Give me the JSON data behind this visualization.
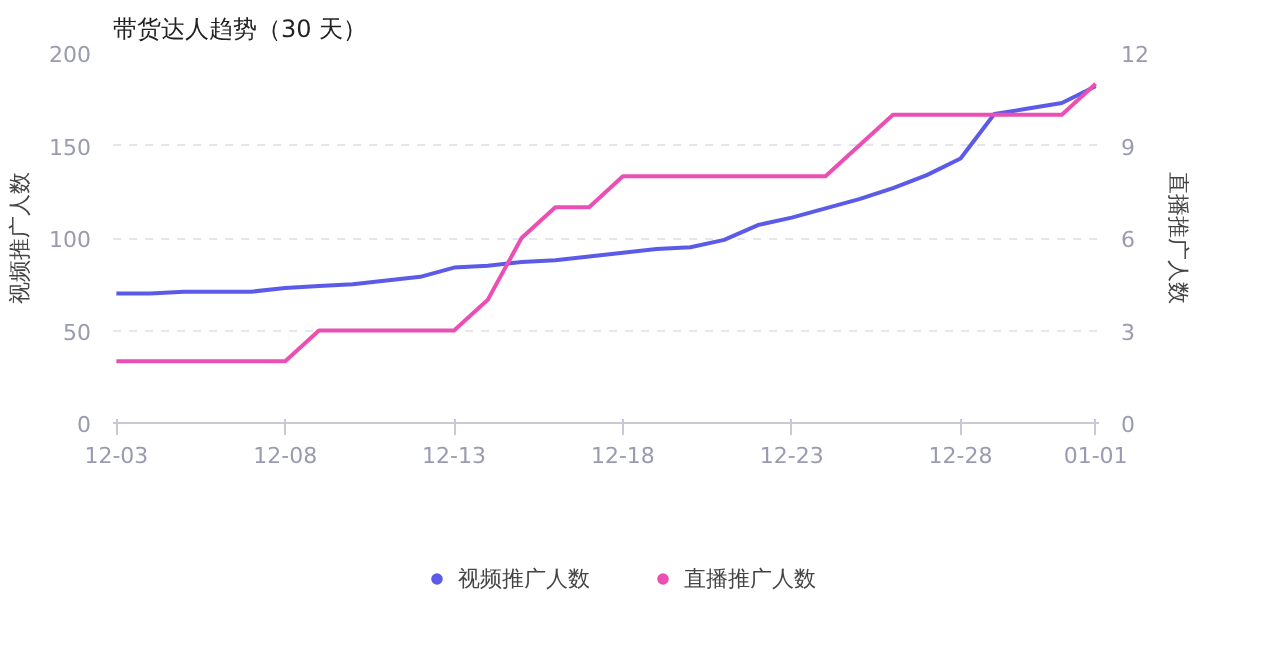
{
  "chart_data": {
    "type": "line",
    "title": "带货达人趋势（30 天）",
    "ylabel": "视频推广人数",
    "y2label": "直播推广人数",
    "categories": [
      "12-03",
      null,
      null,
      null,
      null,
      "12-08",
      null,
      null,
      null,
      null,
      "12-13",
      null,
      null,
      null,
      null,
      "12-18",
      null,
      null,
      null,
      null,
      "12-23",
      null,
      null,
      null,
      null,
      "12-28",
      null,
      null,
      null,
      "01-01"
    ],
    "series": [
      {
        "name": "视频推广人数",
        "color": "#5b5be8",
        "values": [
          70,
          70,
          71,
          71,
          71,
          73,
          74,
          75,
          77,
          79,
          84,
          85,
          87,
          88,
          90,
          92,
          94,
          95,
          99,
          107,
          111,
          116,
          121,
          127,
          134,
          143,
          167,
          170,
          173,
          182
        ]
      },
      {
        "name": "直播推广人数",
        "color": "#ec4fb4",
        "axis": "y2",
        "values": [
          2,
          2,
          2,
          2,
          2,
          2,
          3,
          3,
          3,
          3,
          3,
          4,
          6,
          7,
          7,
          8,
          8,
          8,
          8,
          8,
          8,
          8,
          9,
          10,
          10,
          10,
          10,
          10,
          10,
          11
        ]
      }
    ],
    "ylim": [
      0,
      200
    ],
    "yticks": [
      0,
      50,
      100,
      150,
      200
    ],
    "y2lim": [
      0,
      12
    ],
    "y2ticks": [
      0,
      3,
      6,
      9,
      12
    ],
    "grid": "y",
    "legend": "bottom",
    "marker": "none",
    "line_style": "solid"
  }
}
